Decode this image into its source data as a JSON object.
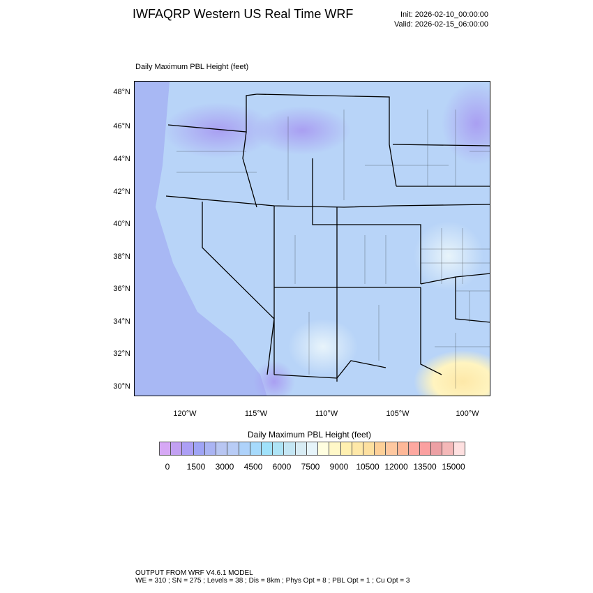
{
  "header": {
    "title": "IWFAQRP Western US Real Time WRF",
    "init": "Init: 2026-02-10_00:00:00",
    "valid": "Valid: 2026-02-15_06:00:00"
  },
  "map": {
    "subtitle": "Daily Maximum PBL Height   (feet)",
    "lat_labels": [
      "48°N",
      "46°N",
      "44°N",
      "42°N",
      "40°N",
      "38°N",
      "36°N",
      "34°N",
      "32°N",
      "30°N"
    ],
    "lon_labels": [
      "120°W",
      "115°W",
      "110°W",
      "105°W",
      "100°W"
    ],
    "dominant_color": "#b8d8f8",
    "ocean_color": "#a8b8f4",
    "high_color": "#fde8a8"
  },
  "colorbar": {
    "title": "Daily Maximum PBL Height  (feet)",
    "labels": [
      "0",
      "1500",
      "3000",
      "4500",
      "6000",
      "7500",
      "9000",
      "10500",
      "12000",
      "13500",
      "15000"
    ],
    "colors": [
      "#d6a8f5",
      "#c2a0f2",
      "#ac9ff5",
      "#9fa4f5",
      "#aab4f3",
      "#b8c6f2",
      "#b8ccf6",
      "#aed2fa",
      "#a6dafc",
      "#a0e2fb",
      "#aee4f6",
      "#c4e6f4",
      "#d8ecf4",
      "#e6f4fa",
      "#fffee0",
      "#fff8c8",
      "#fff0b0",
      "#fee8a8",
      "#fde0a0",
      "#fdd098",
      "#fec8a0",
      "#feb898",
      "#fda8a0",
      "#fba0a0",
      "#eca0a4",
      "#f4b8b8",
      "#fee0e0"
    ]
  },
  "footer": {
    "line1": "OUTPUT FROM WRF V4.6.1 MODEL",
    "line2": "WE = 310 ; SN = 275 ; Levels = 38 ; Dis = 8km ; Phys Opt = 8 ; PBL Opt = 1 ; Cu Opt = 3"
  }
}
